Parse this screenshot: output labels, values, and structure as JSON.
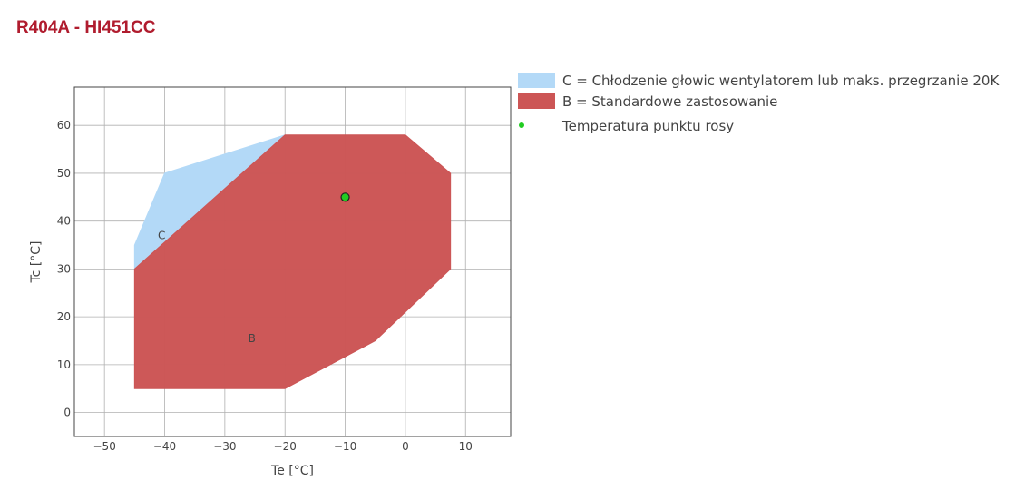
{
  "page_title": "R404A - HI451CC",
  "chart_data": {
    "type": "area",
    "xlabel": "Te [°C]",
    "ylabel": "Tc [°C]",
    "xlim": [
      -55,
      17.5
    ],
    "ylim": [
      -5,
      68
    ],
    "xticks": [
      -50,
      -40,
      -30,
      -20,
      -10,
      0,
      10
    ],
    "yticks": [
      0,
      10,
      20,
      30,
      40,
      50,
      60
    ],
    "xtick_labels": [
      "−50",
      "−40",
      "−30",
      "−20",
      "−10",
      "0",
      "10"
    ],
    "ytick_labels": [
      "0",
      "10",
      "20",
      "30",
      "40",
      "50",
      "60"
    ],
    "grid": true,
    "legend_position": "top-right outside",
    "regions": [
      {
        "label": "C",
        "legend": "C = Chłodzenie głowic wentylatorem lub maks. przegrzanie 20K",
        "color": "#b3d9f7",
        "points": [
          [
            -45,
            30
          ],
          [
            -45,
            35
          ],
          [
            -40,
            50
          ],
          [
            -20,
            58
          ],
          [
            -45,
            30
          ]
        ],
        "label_at": [
          -40.5,
          37
        ]
      },
      {
        "label": "B",
        "legend": "B = Standardowe zastosowanie",
        "color": "#cc5555",
        "points": [
          [
            -45,
            5
          ],
          [
            -20,
            5
          ],
          [
            -5,
            15
          ],
          [
            7.5,
            30
          ],
          [
            7.5,
            50
          ],
          [
            0,
            58
          ],
          [
            -20,
            58
          ],
          [
            -45,
            30
          ],
          [
            -45,
            5
          ]
        ],
        "label_at": [
          -25.5,
          15.5
        ]
      }
    ],
    "points": [
      {
        "legend": "Temperatura punktu rosy",
        "x": -10,
        "y": 45,
        "color": "#22cc22"
      }
    ]
  }
}
